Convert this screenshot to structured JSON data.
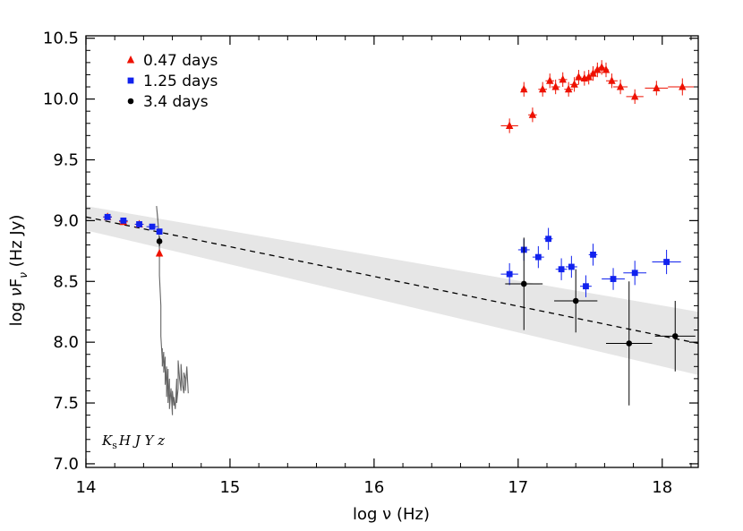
{
  "chart_data": {
    "type": "scatter",
    "title": "",
    "xlabel": "log ν (Hz)",
    "ylabel": "log νF_ν (Hz Jy)",
    "ylabel_parts": {
      "prefix": "log ",
      "nu": "ν",
      "F": "F",
      "sub": "ν",
      "suffix": " (Hz Jy)"
    },
    "xlim": [
      14.0,
      18.25
    ],
    "ylim": [
      6.97,
      10.52
    ],
    "xticks": [
      14,
      15,
      16,
      17,
      18
    ],
    "yticks": [
      7.0,
      7.5,
      8.0,
      8.5,
      9.0,
      9.5,
      10.0,
      10.5
    ],
    "ytick_labels": [
      "7.0",
      "7.5",
      "8.0",
      "8.5",
      "9.0",
      "9.5",
      "10.0",
      "10.5"
    ],
    "legend_position": "top-left",
    "band_label": {
      "K": "K",
      "s": "s",
      "rest": "H J Y z"
    },
    "fit_line": {
      "x": [
        14.0,
        18.25
      ],
      "y": [
        9.03,
        7.99
      ],
      "style": "dashed"
    },
    "uncertainty_band": {
      "x": [
        14.0,
        18.25
      ],
      "upper": [
        9.12,
        8.25
      ],
      "lower": [
        8.92,
        7.73
      ]
    },
    "spectrum": {
      "x": [
        14.51,
        14.51,
        14.52,
        14.52,
        14.53,
        14.53,
        14.53,
        14.54,
        14.54,
        14.55,
        14.55,
        14.56,
        14.56,
        14.57,
        14.57,
        14.58,
        14.58,
        14.59,
        14.6,
        14.6,
        14.61,
        14.61,
        14.62,
        14.63,
        14.63,
        14.64,
        14.64,
        14.65,
        14.66,
        14.66,
        14.67,
        14.68,
        14.68,
        14.69,
        14.69,
        14.7,
        14.71
      ],
      "y": [
        8.73,
        8.55,
        8.3,
        8.05,
        7.85,
        7.95,
        7.8,
        7.92,
        7.75,
        7.88,
        7.65,
        7.8,
        7.55,
        7.78,
        7.5,
        7.7,
        7.45,
        7.62,
        7.4,
        7.6,
        7.48,
        7.55,
        7.45,
        7.7,
        7.5,
        7.62,
        7.85,
        7.7,
        7.6,
        7.82,
        7.65,
        7.58,
        7.75,
        7.7,
        7.6,
        7.8,
        7.58
      ],
      "color": "#666666"
    },
    "series": [
      {
        "name": "0.47 days",
        "color": "#ee1100",
        "marker": "triangle",
        "points": [
          {
            "x": 14.15,
            "y": 9.03,
            "xerr": 0.03,
            "yerr": 0.02
          },
          {
            "x": 14.26,
            "y": 8.99,
            "xerr": 0.03,
            "yerr": 0.02
          },
          {
            "x": 14.37,
            "y": 8.97,
            "xerr": 0.03,
            "yerr": 0.02
          },
          {
            "x": 14.51,
            "y": 8.73,
            "xerr": 0.0,
            "yerr": 0.03
          },
          {
            "x": 16.94,
            "y": 9.78,
            "xerr": 0.06,
            "yerr": 0.06
          },
          {
            "x": 17.04,
            "y": 10.08,
            "xerr": 0.02,
            "yerr": 0.06
          },
          {
            "x": 17.1,
            "y": 9.87,
            "xerr": 0.03,
            "yerr": 0.06
          },
          {
            "x": 17.17,
            "y": 10.08,
            "xerr": 0.03,
            "yerr": 0.06
          },
          {
            "x": 17.22,
            "y": 10.15,
            "xerr": 0.03,
            "yerr": 0.06
          },
          {
            "x": 17.26,
            "y": 10.1,
            "xerr": 0.03,
            "yerr": 0.06
          },
          {
            "x": 17.31,
            "y": 10.16,
            "xerr": 0.03,
            "yerr": 0.06
          },
          {
            "x": 17.35,
            "y": 10.08,
            "xerr": 0.03,
            "yerr": 0.06
          },
          {
            "x": 17.39,
            "y": 10.12,
            "xerr": 0.03,
            "yerr": 0.06
          },
          {
            "x": 17.42,
            "y": 10.18,
            "xerr": 0.02,
            "yerr": 0.06
          },
          {
            "x": 17.46,
            "y": 10.17,
            "xerr": 0.02,
            "yerr": 0.06
          },
          {
            "x": 17.49,
            "y": 10.18,
            "xerr": 0.02,
            "yerr": 0.06
          },
          {
            "x": 17.52,
            "y": 10.21,
            "xerr": 0.02,
            "yerr": 0.06
          },
          {
            "x": 17.55,
            "y": 10.24,
            "xerr": 0.02,
            "yerr": 0.06
          },
          {
            "x": 17.58,
            "y": 10.26,
            "xerr": 0.02,
            "yerr": 0.06
          },
          {
            "x": 17.61,
            "y": 10.24,
            "xerr": 0.02,
            "yerr": 0.06
          },
          {
            "x": 17.65,
            "y": 10.15,
            "xerr": 0.04,
            "yerr": 0.06
          },
          {
            "x": 17.71,
            "y": 10.1,
            "xerr": 0.05,
            "yerr": 0.06
          },
          {
            "x": 17.81,
            "y": 10.02,
            "xerr": 0.06,
            "yerr": 0.06
          },
          {
            "x": 17.96,
            "y": 10.09,
            "xerr": 0.08,
            "yerr": 0.06
          },
          {
            "x": 18.14,
            "y": 10.1,
            "xerr": 0.1,
            "yerr": 0.07
          }
        ]
      },
      {
        "name": "1.25 days",
        "color": "#1122ee",
        "marker": "square",
        "points": [
          {
            "x": 14.15,
            "y": 9.03,
            "xerr": 0.03,
            "yerr": 0.02
          },
          {
            "x": 14.26,
            "y": 9.0,
            "xerr": 0.03,
            "yerr": 0.02
          },
          {
            "x": 14.37,
            "y": 8.97,
            "xerr": 0.03,
            "yerr": 0.02
          },
          {
            "x": 14.46,
            "y": 8.95,
            "xerr": 0.04,
            "yerr": 0.02
          },
          {
            "x": 14.51,
            "y": 8.91,
            "xerr": 0.02,
            "yerr": 0.02
          },
          {
            "x": 16.94,
            "y": 8.56,
            "xerr": 0.06,
            "yerr": 0.09
          },
          {
            "x": 17.04,
            "y": 8.76,
            "xerr": 0.04,
            "yerr": 0.09
          },
          {
            "x": 17.14,
            "y": 8.7,
            "xerr": 0.04,
            "yerr": 0.09
          },
          {
            "x": 17.21,
            "y": 8.85,
            "xerr": 0.03,
            "yerr": 0.09
          },
          {
            "x": 17.3,
            "y": 8.6,
            "xerr": 0.04,
            "yerr": 0.09
          },
          {
            "x": 17.37,
            "y": 8.62,
            "xerr": 0.04,
            "yerr": 0.09
          },
          {
            "x": 17.47,
            "y": 8.46,
            "xerr": 0.04,
            "yerr": 0.09
          },
          {
            "x": 17.52,
            "y": 8.72,
            "xerr": 0.03,
            "yerr": 0.09
          },
          {
            "x": 17.66,
            "y": 8.52,
            "xerr": 0.08,
            "yerr": 0.09
          },
          {
            "x": 17.81,
            "y": 8.57,
            "xerr": 0.08,
            "yerr": 0.1
          },
          {
            "x": 18.03,
            "y": 8.66,
            "xerr": 0.1,
            "yerr": 0.1
          }
        ]
      },
      {
        "name": "3.4 days",
        "color": "#000000",
        "marker": "circle",
        "points": [
          {
            "x": 14.51,
            "y": 8.83,
            "xerr": 0.0,
            "yerr": 0.04
          },
          {
            "x": 17.04,
            "y": 8.48,
            "xerr": 0.13,
            "yerr": 0.38
          },
          {
            "x": 17.4,
            "y": 8.34,
            "xerr": 0.15,
            "yerr": 0.26
          },
          {
            "x": 17.77,
            "y": 7.99,
            "xerr": 0.16,
            "yerr": 0.51
          },
          {
            "x": 18.09,
            "y": 8.05,
            "xerr": 0.14,
            "yerr": 0.29
          }
        ]
      }
    ]
  }
}
